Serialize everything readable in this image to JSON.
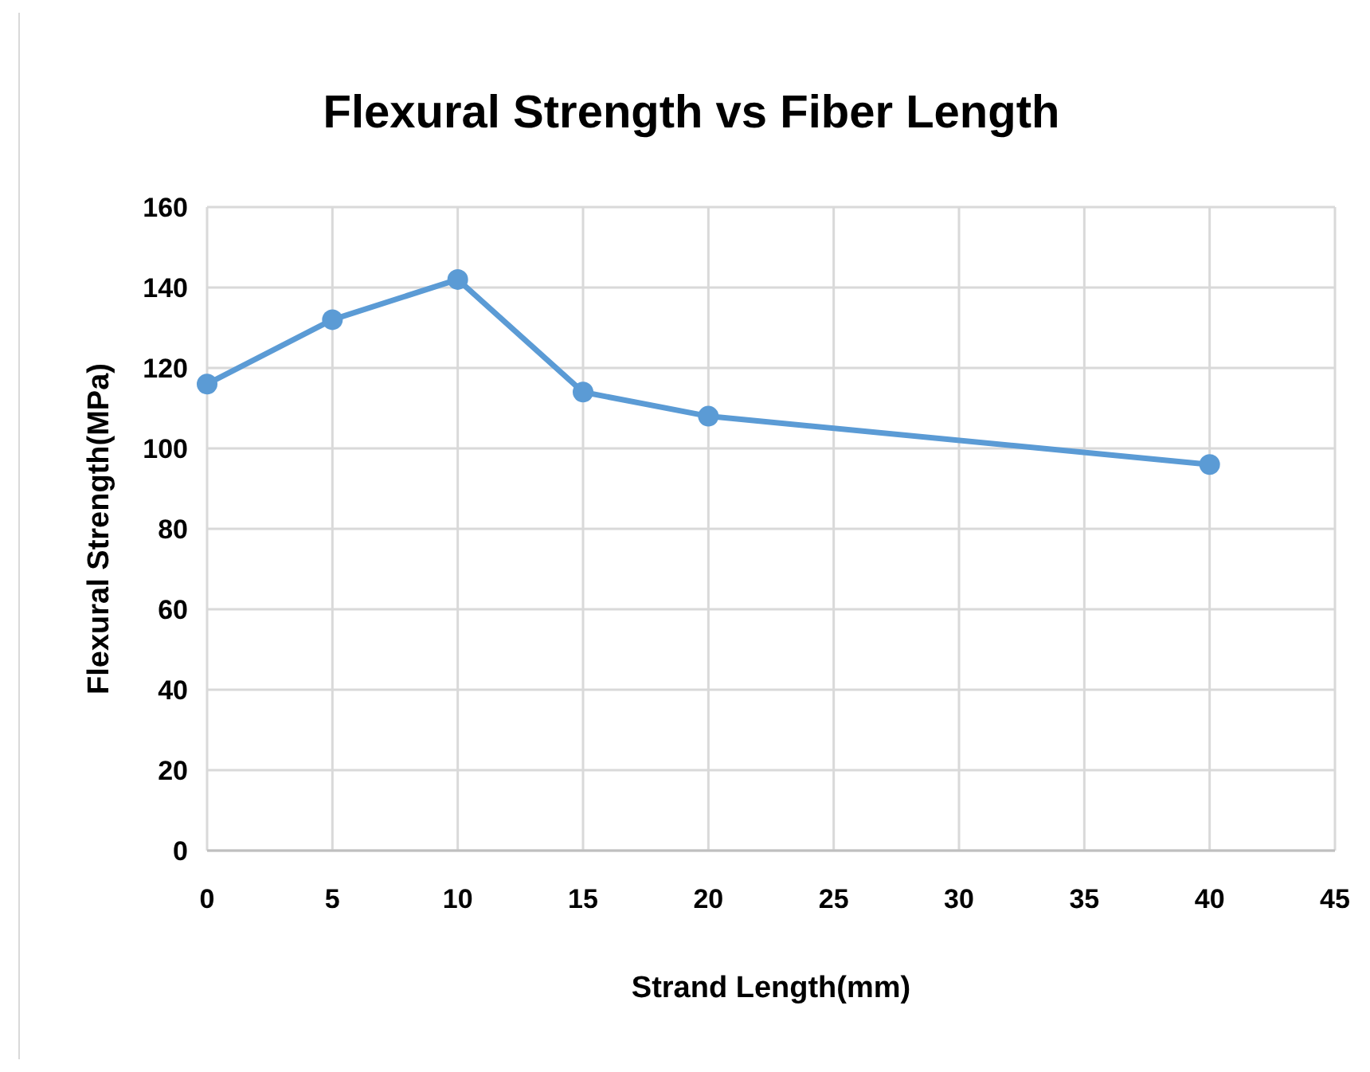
{
  "chart_data": {
    "type": "line",
    "title": "Flexural Strength vs Fiber Length",
    "xlabel": "Strand Length(mm)",
    "ylabel": "Flexural Strength(MPa)",
    "x": [
      0,
      5,
      10,
      15,
      20,
      40
    ],
    "series": [
      {
        "color": "#5b9bd5",
        "values": [
          116,
          132,
          142,
          114,
          108,
          96
        ]
      }
    ],
    "xlim": [
      0,
      45
    ],
    "xticks": [
      0,
      5,
      10,
      15,
      20,
      25,
      30,
      35,
      40,
      45
    ],
    "ylim": [
      0,
      160
    ],
    "yticks": [
      0,
      20,
      40,
      60,
      80,
      100,
      120,
      140,
      160
    ],
    "grid": true,
    "marker": "circle",
    "line_style": "solid"
  }
}
